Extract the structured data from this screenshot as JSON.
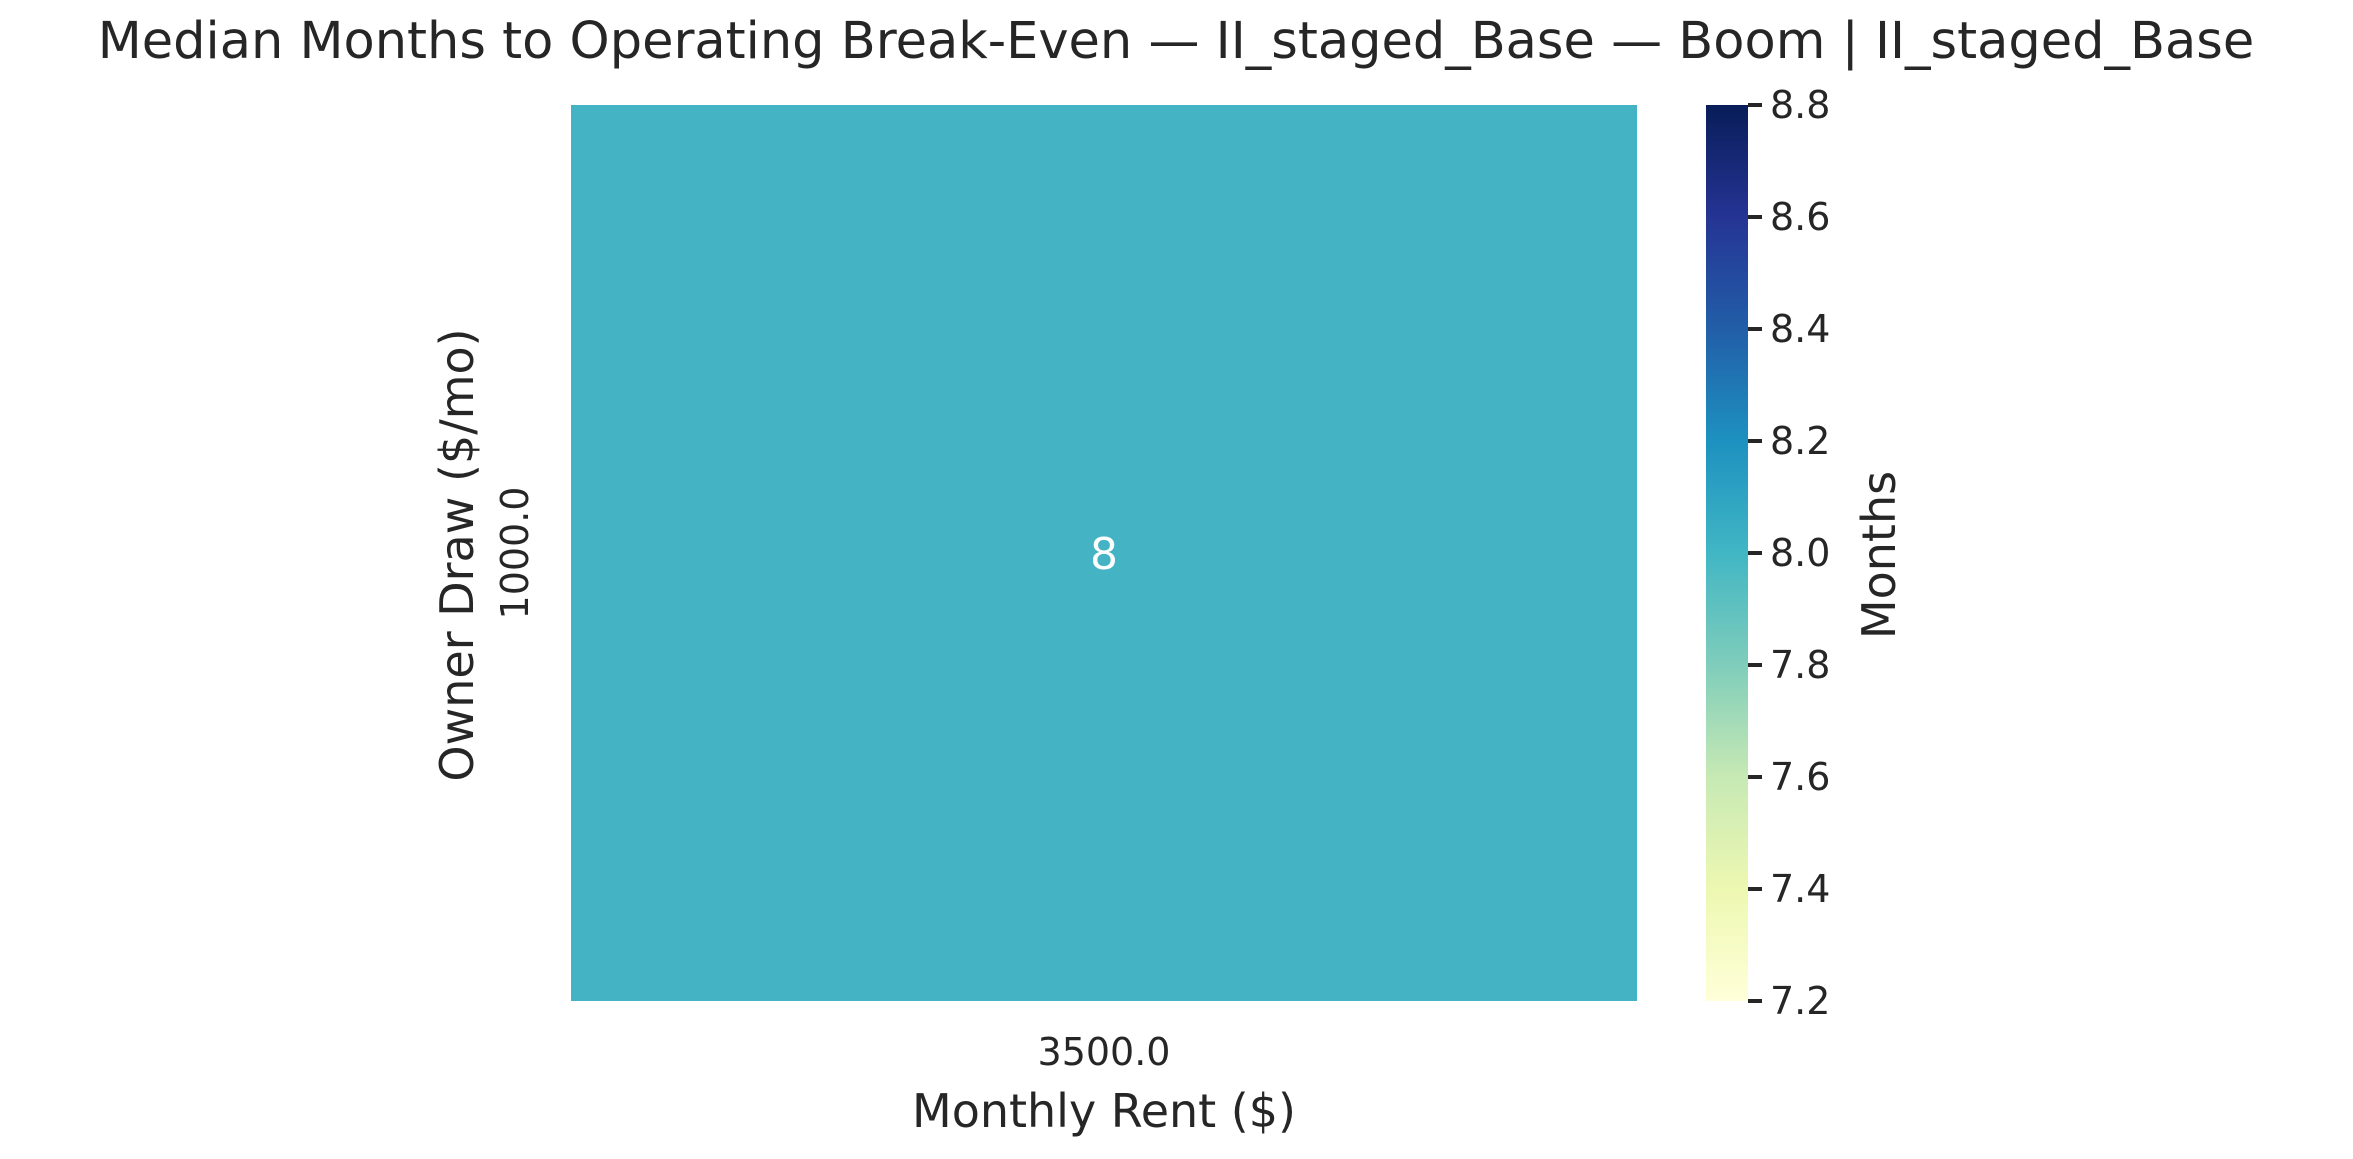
{
  "chart_data": {
    "type": "heatmap",
    "title": "Median Months to Operating Break-Even — II_staged_Base — Boom | II_staged_Base",
    "xlabel": "Monthly Rent ($)",
    "ylabel": "Owner Draw ($/mo)",
    "x_categories": [
      "3500.0"
    ],
    "y_categories": [
      "1000.0"
    ],
    "values": [
      [
        8.0
      ]
    ],
    "annotations": [
      [
        "8"
      ]
    ],
    "colormap": "YlGnBu",
    "colorbar": {
      "label": "Months",
      "vmin": 7.2,
      "vmax": 8.8,
      "ticks": [
        7.2,
        7.4,
        7.6,
        7.8,
        8.0,
        8.2,
        8.4,
        8.6,
        8.8
      ],
      "tick_labels": [
        "7.2",
        "7.4",
        "7.6",
        "7.8",
        "8.0",
        "8.2",
        "8.4",
        "8.6",
        "8.8"
      ]
    },
    "cell_color": "#44b4c4",
    "annotation_color": "#ffffff",
    "grid": false
  }
}
